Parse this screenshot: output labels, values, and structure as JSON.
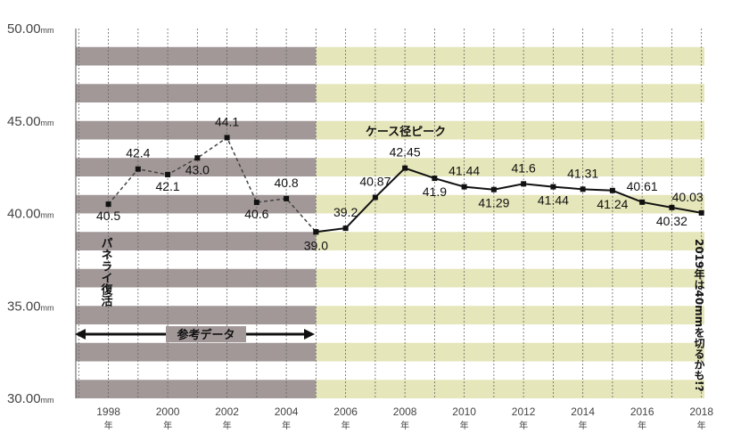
{
  "chart_data": {
    "type": "line",
    "y_unit": "mm",
    "ylim": [
      30,
      50
    ],
    "y_ticks": [
      {
        "value": 50,
        "label": "50.00"
      },
      {
        "value": 45,
        "label": "45.00"
      },
      {
        "value": 40,
        "label": "40.00"
      },
      {
        "value": 35,
        "label": "35.00"
      },
      {
        "value": 30,
        "label": "30.00"
      }
    ],
    "x_ticks": [
      1998,
      2000,
      2002,
      2004,
      2006,
      2008,
      2010,
      2012,
      2014,
      2016,
      2018
    ],
    "x_tick_suffix": "年",
    "xlim": [
      1996.9,
      2018.1
    ],
    "reference_until": 2005,
    "series": [
      {
        "style": "dashed",
        "points": [
          {
            "x": 1998,
            "y": 40.5,
            "label": "40.5"
          },
          {
            "x": 1999,
            "y": 42.4,
            "label": "42.4"
          },
          {
            "x": 2000,
            "y": 42.1,
            "label": "42.1"
          },
          {
            "x": 2001,
            "y": 43.0,
            "label": "43.0"
          },
          {
            "x": 2002,
            "y": 44.1,
            "label": "44.1"
          },
          {
            "x": 2003,
            "y": 40.6,
            "label": "40.6"
          },
          {
            "x": 2004,
            "y": 40.8,
            "label": "40.8"
          },
          {
            "x": 2005,
            "y": 39.0,
            "label": "39.0"
          }
        ]
      },
      {
        "style": "solid",
        "points": [
          {
            "x": 2005,
            "y": 39.0,
            "label": ""
          },
          {
            "x": 2006,
            "y": 39.2,
            "label": "39.2"
          },
          {
            "x": 2007,
            "y": 40.87,
            "label": "40.87"
          },
          {
            "x": 2008,
            "y": 42.45,
            "label": "42.45"
          },
          {
            "x": 2009,
            "y": 41.9,
            "label": "41.9"
          },
          {
            "x": 2010,
            "y": 41.44,
            "label": "41.44"
          },
          {
            "x": 2011,
            "y": 41.29,
            "label": "41.29"
          },
          {
            "x": 2012,
            "y": 41.6,
            "label": "41.6"
          },
          {
            "x": 2013,
            "y": 41.44,
            "label": "41.44"
          },
          {
            "x": 2014,
            "y": 41.31,
            "label": "41.31"
          },
          {
            "x": 2015,
            "y": 41.24,
            "label": "41.24"
          },
          {
            "x": 2016,
            "y": 40.61,
            "label": "40.61"
          },
          {
            "x": 2017,
            "y": 40.32,
            "label": "40.32"
          },
          {
            "x": 2018,
            "y": 40.03,
            "label": "40.03"
          }
        ]
      }
    ],
    "annotations": {
      "reference_data": "参考データ",
      "case_peak": "ケース径ピーク",
      "panerai": "パネライ復活",
      "forecast": "2019年は40mmを切るかも!?"
    },
    "colors": {
      "reference_band": "#a29898",
      "recent_band": "#e5e6b9",
      "line": "#111111"
    }
  }
}
